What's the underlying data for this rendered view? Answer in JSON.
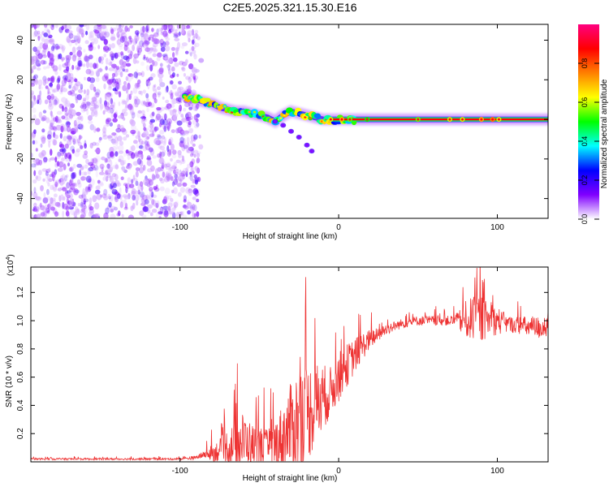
{
  "title": "C2E5.2025.321.15.30.E16",
  "chart_data": [
    {
      "type": "heatmap",
      "xlabel": "Height of straight line (km)",
      "ylabel": "Frequency (Hz)",
      "xlim": [
        -194,
        132
      ],
      "ylim": [
        -50,
        48
      ],
      "xticks": [
        -100,
        0,
        100
      ],
      "yticks": [
        -40,
        -20,
        0,
        20,
        40
      ],
      "noise_region_x": [
        -194,
        -88
      ],
      "trace": {
        "x": [
          -97,
          -90,
          -85,
          -80,
          -75,
          -70,
          -65,
          -60,
          -55,
          -50,
          -45,
          -40,
          -35,
          -30,
          -25,
          -20,
          -15,
          -10,
          -5,
          0,
          10,
          20,
          50,
          80,
          100,
          132
        ],
        "freq": [
          12,
          10,
          9,
          8,
          6,
          5,
          4,
          4,
          3,
          2,
          1,
          -1,
          2,
          4,
          3,
          2,
          1,
          0,
          0,
          0,
          0,
          0,
          0,
          0,
          0,
          0
        ]
      },
      "branch": {
        "x": [
          -40,
          -35,
          -30,
          -25,
          -20,
          -17
        ],
        "freq": [
          -1,
          -3,
          -6,
          -9,
          -13,
          -16
        ]
      },
      "colorbar": {
        "label": "Normalized spectral amplitude",
        "ticks": [
          0.0,
          0.2,
          0.4,
          0.6,
          0.8
        ],
        "range": [
          0,
          1
        ],
        "colors": [
          "#ffffff",
          "#8000ff",
          "#0000ff",
          "#00ffff",
          "#00ff00",
          "#ffff00",
          "#ff8000",
          "#ff0000",
          "#ff0080"
        ]
      }
    },
    {
      "type": "line",
      "xlabel": "Height of straight line (km)",
      "ylabel": "SNR (10 * v/v)",
      "scale_label": "(x10",
      "scale_exp": "4",
      "scale_close": ")",
      "xlim": [
        -194,
        132
      ],
      "ylim": [
        0,
        1.38
      ],
      "xticks": [
        -100,
        0,
        100
      ],
      "yticks": [
        "0.2",
        "0.4",
        "0.6",
        "0.8",
        "1.0",
        "1.2"
      ],
      "yticks_values": [
        0.2,
        0.4,
        0.6,
        0.8,
        1.0,
        1.2
      ],
      "color": "#ee3333",
      "envelope": {
        "x": [
          -194,
          -100,
          -90,
          -85,
          -80,
          -75,
          -70,
          -65,
          -60,
          -55,
          -50,
          -45,
          -40,
          -35,
          -30,
          -25,
          -20,
          -15,
          -10,
          -5,
          0,
          5,
          10,
          15,
          20,
          25,
          30,
          35,
          40,
          50,
          60,
          70,
          75,
          80,
          85,
          90,
          95,
          100,
          105,
          110,
          115,
          120,
          125,
          132
        ],
        "base": [
          0.02,
          0.02,
          0.03,
          0.05,
          0.06,
          0.08,
          0.1,
          0.12,
          0.15,
          0.12,
          0.1,
          0.09,
          0.12,
          0.18,
          0.25,
          0.3,
          0.35,
          0.4,
          0.45,
          0.5,
          0.6,
          0.68,
          0.75,
          0.82,
          0.87,
          0.9,
          0.94,
          0.96,
          0.98,
          1.0,
          1.0,
          1.0,
          1.0,
          1.0,
          1.02,
          1.02,
          1.0,
          1.0,
          0.98,
          0.97,
          0.97,
          0.95,
          0.95,
          0.95
        ],
        "amp": [
          0.01,
          0.01,
          0.02,
          0.03,
          0.08,
          0.12,
          0.2,
          0.25,
          0.3,
          0.22,
          0.2,
          0.2,
          0.25,
          0.35,
          0.45,
          0.55,
          0.5,
          0.45,
          0.35,
          0.25,
          0.25,
          0.22,
          0.18,
          0.14,
          0.1,
          0.07,
          0.06,
          0.05,
          0.05,
          0.05,
          0.05,
          0.05,
          0.08,
          0.2,
          0.22,
          0.25,
          0.15,
          0.15,
          0.1,
          0.08,
          0.1,
          0.1,
          0.12,
          0.1
        ]
      }
    }
  ]
}
